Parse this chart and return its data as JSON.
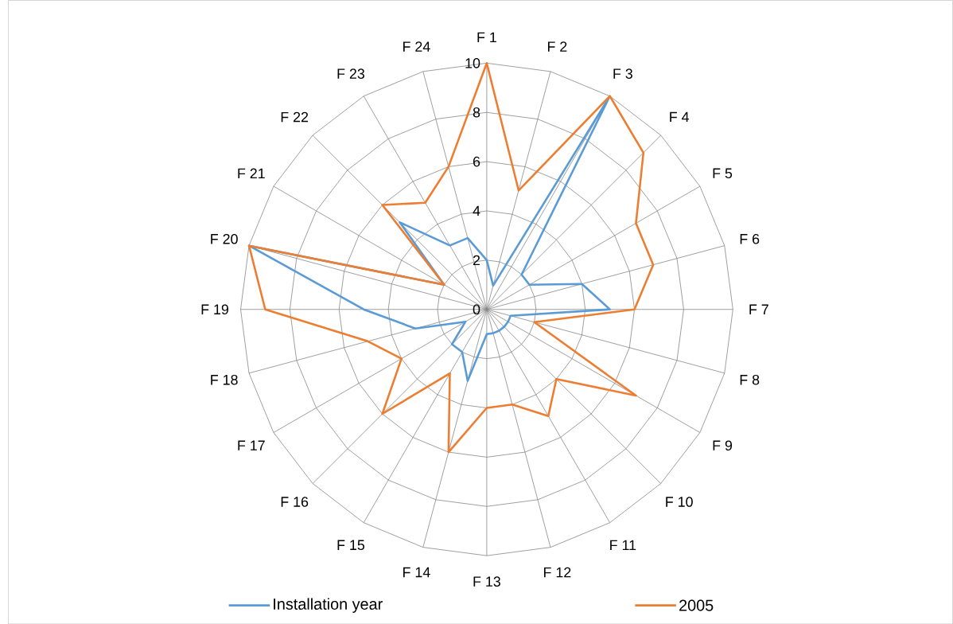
{
  "chart_data": {
    "type": "radar",
    "categories": [
      "F 1",
      "F 2",
      "F 3",
      "F 4",
      "F 5",
      "F 6",
      "F 7",
      "F 8",
      "F 9",
      "F 10",
      "F 11",
      "F 12",
      "F 13",
      "F 14",
      "F 15",
      "F 16",
      "F 17",
      "F 18",
      "F 19",
      "F 20",
      "F 21",
      "F 22",
      "F 23",
      "F 24"
    ],
    "series": [
      {
        "name": "Installation year",
        "color": "#5b9bd5",
        "values": [
          2,
          1,
          10,
          2,
          2,
          4,
          5,
          1,
          1,
          1,
          1,
          1,
          1,
          3,
          2,
          2,
          1,
          3,
          5,
          10,
          2,
          5,
          3,
          3
        ]
      },
      {
        "name": "2005",
        "color": "#ed7d31",
        "values": [
          10,
          5,
          10,
          9,
          7,
          7,
          6,
          2,
          7,
          4,
          5,
          4,
          4,
          6,
          3,
          6,
          4,
          5,
          9,
          10,
          2,
          6,
          5,
          6
        ]
      }
    ],
    "ylim": [
      0,
      10
    ],
    "yticks": [
      0,
      2,
      4,
      6,
      8,
      10
    ],
    "grid": true,
    "legend": "bottom",
    "marker": "none",
    "line_style": "solid"
  }
}
